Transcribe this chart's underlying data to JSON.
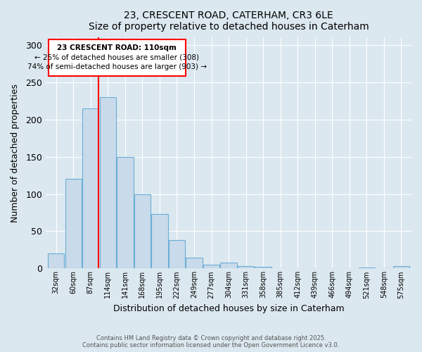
{
  "title1": "23, CRESCENT ROAD, CATERHAM, CR3 6LE",
  "title2": "Size of property relative to detached houses in Caterham",
  "xlabel": "Distribution of detached houses by size in Caterham",
  "ylabel": "Number of detached properties",
  "bins": [
    "32sqm",
    "60sqm",
    "87sqm",
    "114sqm",
    "141sqm",
    "168sqm",
    "195sqm",
    "222sqm",
    "249sqm",
    "277sqm",
    "304sqm",
    "331sqm",
    "358sqm",
    "385sqm",
    "412sqm",
    "439sqm",
    "466sqm",
    "494sqm",
    "521sqm",
    "548sqm",
    "575sqm"
  ],
  "values": [
    20,
    120,
    215,
    230,
    150,
    100,
    73,
    38,
    15,
    5,
    8,
    3,
    2,
    0,
    0,
    0,
    0,
    0,
    1,
    0,
    3
  ],
  "bar_color": "#c9daea",
  "bar_edge_color": "#6aaed6",
  "annotation_line1": "23 CRESCENT ROAD: 110sqm",
  "annotation_line2": "← 25% of detached houses are smaller (308)",
  "annotation_line3": "74% of semi-detached houses are larger (903) →",
  "ylim": [
    0,
    310
  ],
  "yticks": [
    0,
    50,
    100,
    150,
    200,
    250,
    300
  ],
  "footnote1": "Contains HM Land Registry data © Crown copyright and database right 2025.",
  "footnote2": "Contains public sector information licensed under the Open Government Licence v3.0.",
  "bg_color": "#dce8f0",
  "plot_bg_color": "#dce8f0"
}
